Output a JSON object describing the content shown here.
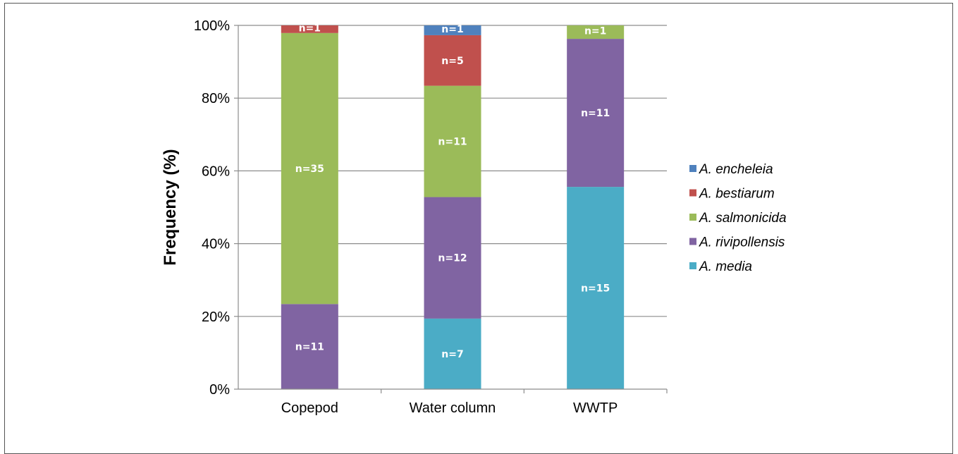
{
  "chart_data": {
    "type": "bar",
    "stacked": true,
    "ylabel": "Frequency (%)",
    "ylim": [
      0,
      100
    ],
    "yticks": [
      "0%",
      "20%",
      "40%",
      "60%",
      "80%",
      "100%"
    ],
    "categories": [
      "Copepod",
      "Water column",
      "WWTP"
    ],
    "legend_position": "right",
    "grid": true,
    "series": [
      {
        "name": "A. media",
        "color": "#4bacc6",
        "values": [
          0,
          19.4,
          55.6
        ],
        "labels": [
          "",
          "n=7",
          "n=15"
        ]
      },
      {
        "name": "A. rivipollensis",
        "color": "#8064a2",
        "values": [
          23.4,
          33.4,
          40.7
        ],
        "labels": [
          "n=11",
          "n=12",
          "n=11"
        ]
      },
      {
        "name": "A. salmonicida",
        "color": "#9bbb59",
        "values": [
          74.5,
          30.6,
          3.7
        ],
        "labels": [
          "n=35",
          "n=11",
          "n=1"
        ]
      },
      {
        "name": "A. bestiarum",
        "color": "#c0504d",
        "values": [
          2.1,
          13.9,
          0
        ],
        "labels": [
          "n=1",
          "n=5",
          ""
        ]
      },
      {
        "name": "A. encheleia",
        "color": "#4f81bd",
        "values": [
          0,
          2.7,
          0
        ],
        "labels": [
          "",
          "n=1",
          ""
        ]
      }
    ]
  }
}
